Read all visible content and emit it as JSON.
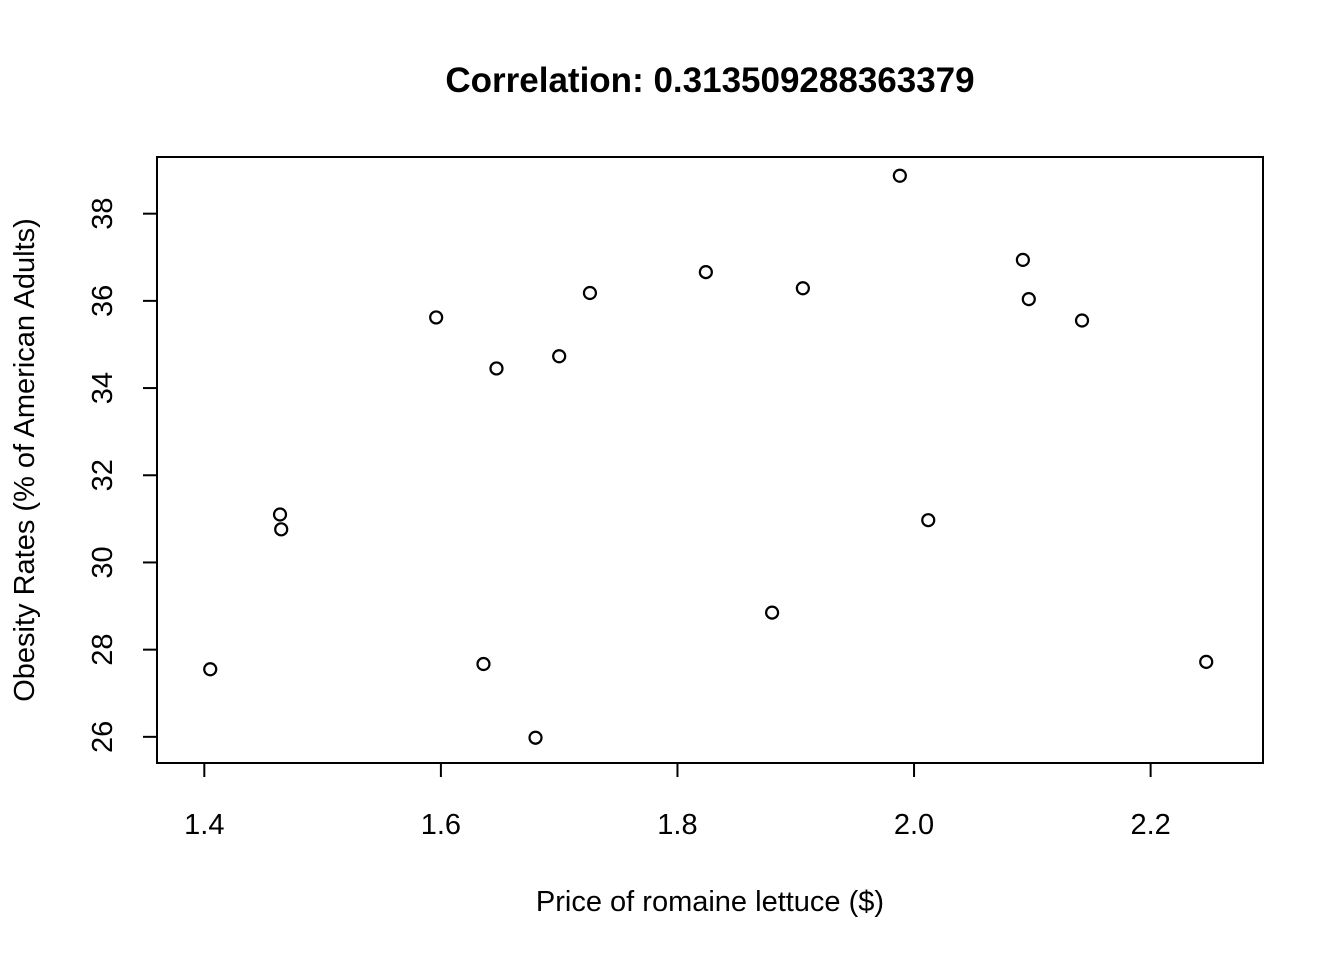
{
  "chart_data": {
    "type": "scatter",
    "title": "Correlation: 0.313509288363379",
    "xlabel": "Price of romaine lettuce ($)",
    "ylabel": "Obesity Rates (% of American Adults)",
    "xlim": [
      1.36,
      2.295
    ],
    "ylim": [
      25.4,
      39.3
    ],
    "xticks": [
      1.4,
      1.6,
      1.8,
      2.0,
      2.2
    ],
    "xtick_labels": [
      "1.4",
      "1.6",
      "1.8",
      "2.0",
      "2.2"
    ],
    "yticks": [
      26,
      28,
      30,
      32,
      34,
      36,
      38
    ],
    "ytick_labels": [
      "26",
      "28",
      "30",
      "32",
      "34",
      "36",
      "38"
    ],
    "grid": false,
    "points": [
      {
        "x": 1.405,
        "y": 27.55
      },
      {
        "x": 1.464,
        "y": 31.1
      },
      {
        "x": 1.465,
        "y": 30.76
      },
      {
        "x": 1.596,
        "y": 35.62
      },
      {
        "x": 1.636,
        "y": 27.67
      },
      {
        "x": 1.647,
        "y": 34.45
      },
      {
        "x": 1.68,
        "y": 25.98
      },
      {
        "x": 1.7,
        "y": 34.73
      },
      {
        "x": 1.726,
        "y": 36.18
      },
      {
        "x": 1.824,
        "y": 36.66
      },
      {
        "x": 1.88,
        "y": 28.85
      },
      {
        "x": 1.906,
        "y": 36.29
      },
      {
        "x": 1.988,
        "y": 38.87
      },
      {
        "x": 2.012,
        "y": 30.97
      },
      {
        "x": 2.092,
        "y": 36.94
      },
      {
        "x": 2.097,
        "y": 36.04
      },
      {
        "x": 2.142,
        "y": 35.55
      },
      {
        "x": 2.247,
        "y": 27.72
      }
    ]
  }
}
